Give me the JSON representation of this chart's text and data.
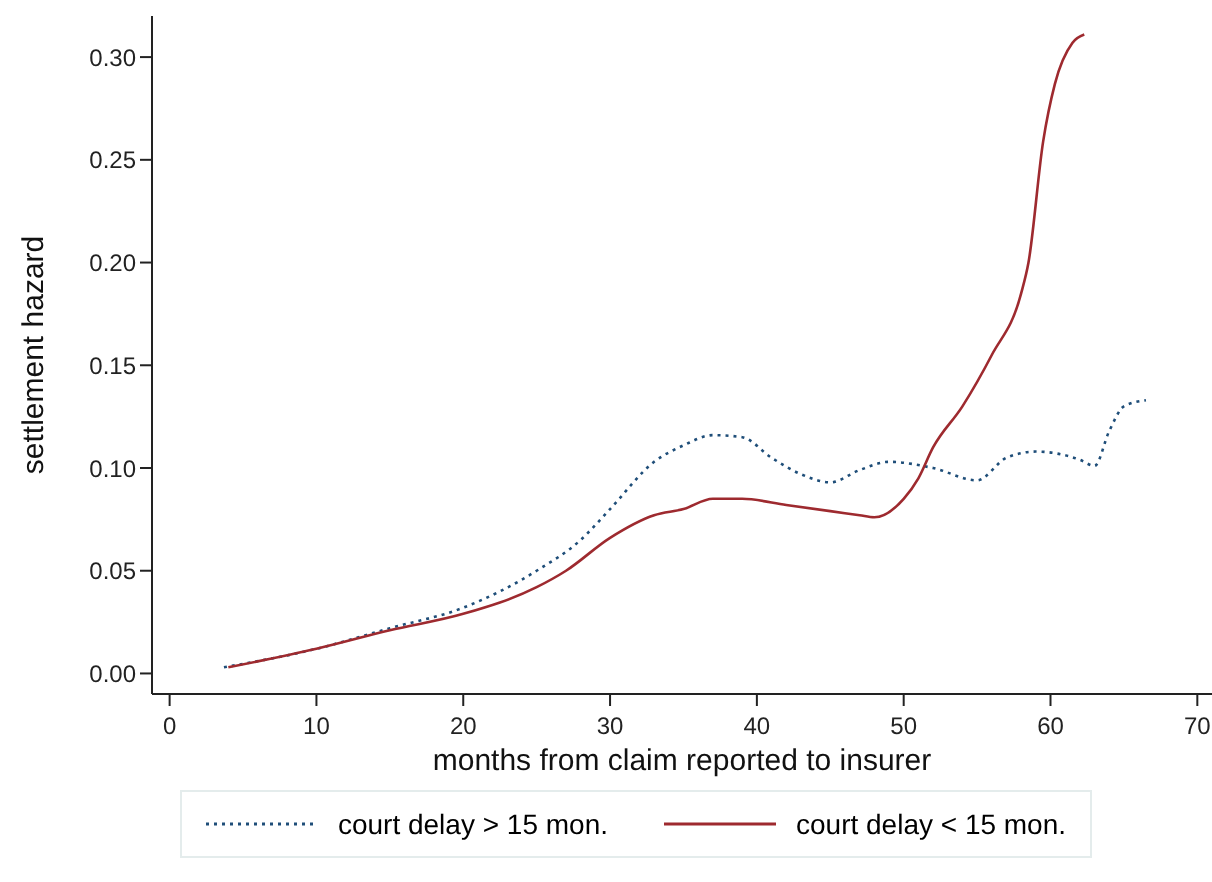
{
  "chart_data": {
    "type": "line",
    "xlabel": "months from claim reported to insurer",
    "ylabel": "settlement hazard",
    "xlim": [
      -1.2,
      71
    ],
    "xticks": [
      0,
      10,
      20,
      30,
      40,
      50,
      60,
      70
    ],
    "ylim": [
      -0.01,
      0.32
    ],
    "yticks": [
      {
        "value": 0,
        "label": "0.00"
      },
      {
        "value": 0.05,
        "label": "0.05"
      },
      {
        "value": 0.1,
        "label": "0.10"
      },
      {
        "value": 0.15,
        "label": "0.15"
      },
      {
        "value": 0.2,
        "label": "0.20"
      },
      {
        "value": 0.25,
        "label": "0.25"
      },
      {
        "value": 0.3,
        "label": "0.30"
      }
    ],
    "grid": false,
    "legend": "bottom",
    "marker": "none",
    "series": [
      {
        "name": "court delay > 15 mon.",
        "color": "#1f4e79",
        "line_style": "dotted",
        "x": [
          3.7,
          10,
          15,
          20,
          25,
          28,
          30,
          33,
          35,
          37,
          39,
          41,
          43,
          45,
          47,
          49,
          52,
          55,
          57,
          59,
          62,
          63,
          64,
          65,
          66.5
        ],
        "values": [
          0.003,
          0.012,
          0.022,
          0.032,
          0.05,
          0.065,
          0.08,
          0.103,
          0.111,
          0.116,
          0.115,
          0.105,
          0.097,
          0.093,
          0.099,
          0.103,
          0.1,
          0.094,
          0.105,
          0.108,
          0.104,
          0.101,
          0.118,
          0.13,
          0.133
        ]
      },
      {
        "name": "court delay < 15 mon.",
        "color": "#9e2a2f",
        "line_style": "solid",
        "x": [
          4,
          10,
          15,
          20,
          25,
          27,
          30,
          33,
          35,
          37,
          39,
          42,
          45,
          47,
          48,
          50,
          51,
          52,
          54,
          56,
          58,
          58.5,
          59.5,
          60.3,
          61.5,
          62.3
        ],
        "values": [
          0.003,
          0.012,
          0.021,
          0.029,
          0.042,
          0.05,
          0.066,
          0.077,
          0.08,
          0.085,
          0.085,
          0.082,
          0.079,
          0.077,
          0.076,
          0.085,
          0.095,
          0.11,
          0.13,
          0.155,
          0.185,
          0.2,
          0.259,
          0.287,
          0.307,
          0.311
        ]
      }
    ]
  }
}
